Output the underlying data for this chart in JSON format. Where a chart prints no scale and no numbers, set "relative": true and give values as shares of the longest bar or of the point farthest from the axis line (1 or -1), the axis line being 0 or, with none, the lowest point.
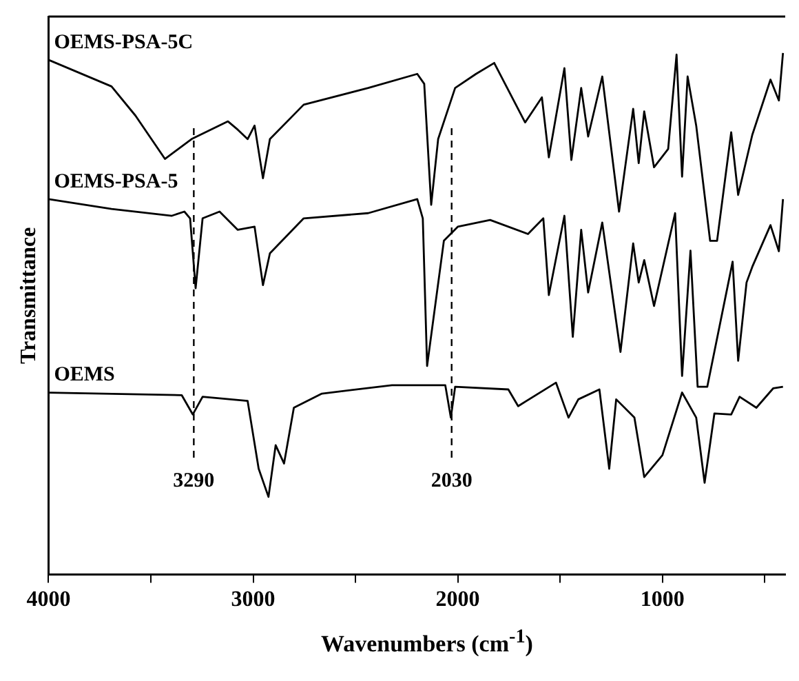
{
  "chart_data": {
    "type": "line",
    "relative": true,
    "xlabel": "Wavenumbers (cm$^{-1}$)",
    "ylabel": "Transmittance",
    "xlim": [
      4000,
      400
    ],
    "xticks": [
      4000,
      {
        "value": 3500,
        "label": null
      },
      3000,
      {
        "value": 2500,
        "label": null
      },
      2000,
      {
        "value": 1500,
        "label": null
      },
      1000,
      {
        "value": 500,
        "label": null
      }
    ],
    "grid": false,
    "legend": false,
    "marker": "none",
    "line_style": "solid",
    "ref_lines": [
      {
        "axis": "x",
        "value": 3290,
        "label": "3290",
        "line_style": "dashed"
      },
      {
        "axis": "x",
        "value": 2030,
        "label": "2030",
        "line_style": "dashed"
      }
    ],
    "series": [
      {
        "name": "OEMS-PSA-5C",
        "color": "#000000",
        "x": [
          4000,
          3692,
          3575,
          3431,
          3301,
          3123,
          3075,
          3027,
          2993,
          2952,
          2918,
          2753,
          2438,
          2198,
          2164,
          2130,
          2096,
          2013,
          1911,
          1822,
          1671,
          1589,
          1555,
          1479,
          1445,
          1397,
          1363,
          1294,
          1212,
          1143,
          1116,
          1089,
          1041,
          972,
          931,
          904,
          877,
          835,
          767,
          733,
          664,
          630,
          561,
          472,
          431,
          411
        ],
        "values": [
          0.987,
          0.936,
          0.88,
          0.797,
          0.835,
          0.869,
          0.853,
          0.835,
          0.861,
          0.76,
          0.835,
          0.901,
          0.933,
          0.96,
          0.941,
          0.709,
          0.835,
          0.933,
          0.96,
          0.981,
          0.867,
          0.915,
          0.8,
          0.971,
          0.795,
          0.933,
          0.84,
          0.955,
          0.696,
          0.893,
          0.789,
          0.888,
          0.781,
          0.816,
          0.997,
          0.763,
          0.955,
          0.861,
          0.64,
          0.64,
          0.848,
          0.728,
          0.843,
          0.949,
          0.909,
          1.0
        ]
      },
      {
        "name": "OEMS-PSA-5",
        "color": "#000000",
        "x": [
          4000,
          3692,
          3397,
          3336,
          3308,
          3281,
          3247,
          3164,
          3075,
          2993,
          2952,
          2918,
          2753,
          2438,
          2198,
          2171,
          2150,
          2068,
          2000,
          1842,
          1657,
          1582,
          1555,
          1479,
          1438,
          1397,
          1363,
          1294,
          1205,
          1143,
          1116,
          1089,
          1041,
          938,
          904,
          863,
          828,
          781,
          657,
          630,
          589,
          561,
          472,
          431,
          411
        ],
        "values": [
          0.72,
          0.701,
          0.688,
          0.696,
          0.683,
          0.549,
          0.683,
          0.696,
          0.661,
          0.667,
          0.555,
          0.616,
          0.683,
          0.693,
          0.72,
          0.683,
          0.4,
          0.64,
          0.667,
          0.68,
          0.653,
          0.683,
          0.536,
          0.688,
          0.456,
          0.661,
          0.541,
          0.675,
          0.427,
          0.635,
          0.56,
          0.603,
          0.515,
          0.693,
          0.381,
          0.621,
          0.36,
          0.36,
          0.6,
          0.41,
          0.56,
          0.59,
          0.67,
          0.62,
          0.72
        ]
      },
      {
        "name": "OEMS",
        "color": "#000000",
        "x": [
          4000,
          3349,
          3295,
          3247,
          3027,
          2973,
          2925,
          2890,
          2849,
          2801,
          2664,
          2322,
          2061,
          2034,
          2013,
          1753,
          1705,
          1520,
          1459,
          1411,
          1308,
          1260,
          1226,
          1137,
          1089,
          1000,
          904,
          835,
          794,
          746,
          664,
          623,
          541,
          459,
          411
        ],
        "values": [
          0.349,
          0.344,
          0.307,
          0.341,
          0.333,
          0.203,
          0.149,
          0.248,
          0.213,
          0.32,
          0.347,
          0.363,
          0.363,
          0.301,
          0.36,
          0.355,
          0.323,
          0.368,
          0.301,
          0.336,
          0.355,
          0.203,
          0.336,
          0.301,
          0.187,
          0.229,
          0.349,
          0.301,
          0.176,
          0.309,
          0.307,
          0.341,
          0.32,
          0.357,
          0.36
        ]
      }
    ]
  }
}
